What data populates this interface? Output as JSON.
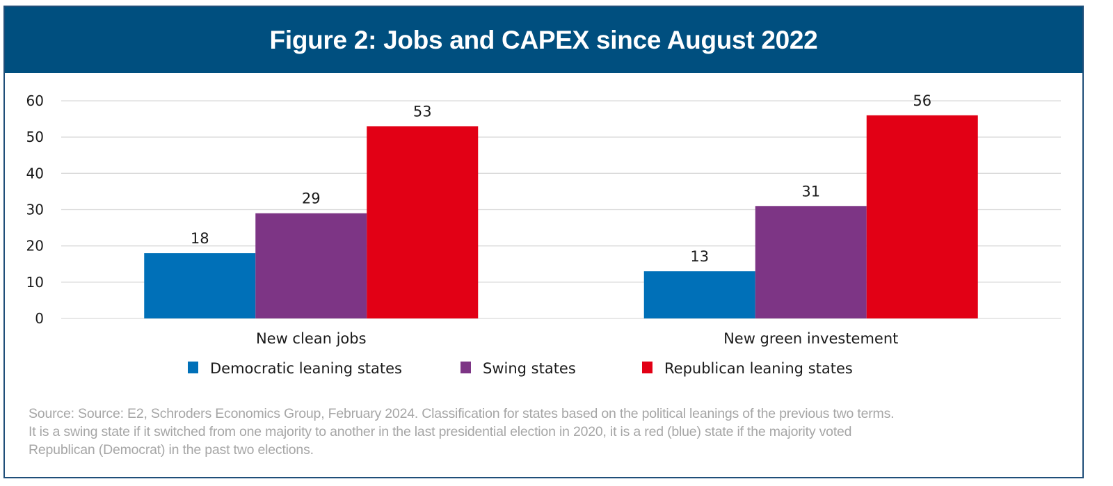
{
  "figure": {
    "title": "Figure 2: Jobs and CAPEX since August 2022",
    "source_lines": [
      "Source: Source: E2, Schroders Economics Group, February 2024. Classification for states based on the political leanings of the previous two terms.",
      "It is a swing state if it switched from one majority to another in the last presidential election in 2020, it is a red (blue) state if the majority voted",
      "Republican (Democrat) in the past two elections."
    ],
    "colors": {
      "header_bg": "#004f7f",
      "frame_border": "#1f4e79",
      "gridline": "#d9d9d9"
    }
  },
  "chart_data": {
    "type": "bar",
    "title": "Figure 2: Jobs and CAPEX since August 2022",
    "xlabel": "",
    "ylabel": "",
    "categories": [
      "New clean jobs",
      "New green investement"
    ],
    "series": [
      {
        "name": "Democratic leaning states",
        "color": "#0070b8",
        "values": [
          18,
          13
        ]
      },
      {
        "name": "Swing states",
        "color": "#7d3585",
        "values": [
          29,
          31
        ]
      },
      {
        "name": "Republican leaning states",
        "color": "#e20015",
        "values": [
          53,
          56
        ]
      }
    ],
    "ylim": [
      0,
      60
    ],
    "yticks": [
      0,
      10,
      20,
      30,
      40,
      50,
      60
    ],
    "grid": true,
    "legend_position": "bottom",
    "data_labels": true
  }
}
